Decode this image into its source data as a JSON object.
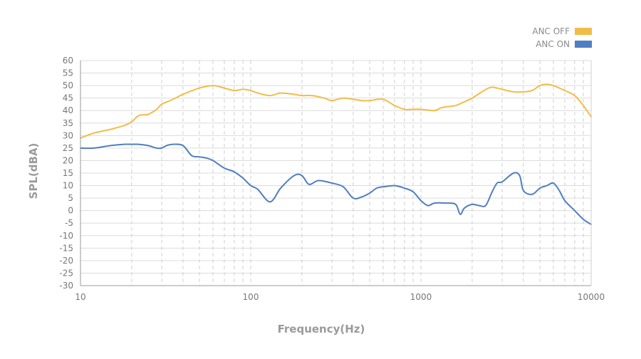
{
  "chart_data": {
    "type": "line",
    "xscale": "log",
    "xlim": [
      10,
      10000
    ],
    "ylim": [
      -30,
      60
    ],
    "xlabel": "Frequency(Hz)",
    "ylabel": "SPL(dBA)",
    "xticks": [
      10,
      100,
      1000,
      10000
    ],
    "xtick_labels": [
      "10",
      "100",
      "1000",
      "10000"
    ],
    "yticks": [
      60,
      55,
      50,
      45,
      40,
      35,
      30,
      25,
      20,
      15,
      10,
      5,
      0,
      -5,
      -10,
      -15,
      -20,
      -25,
      -30
    ],
    "ytick_labels": [
      "60",
      "55",
      "50",
      "45",
      "40",
      "35",
      "30",
      "25",
      "20",
      "15",
      "10",
      "5",
      "0",
      "-5",
      "-10",
      "-15",
      "-20",
      "-25",
      "-30"
    ],
    "grid": {
      "x": "dashed",
      "y": "solid"
    },
    "legend_position": "top-right",
    "series": [
      {
        "name": "ANC OFF",
        "color": "#f2bc48",
        "x": [
          10,
          12,
          15,
          18,
          20,
          22,
          25,
          28,
          30,
          35,
          40,
          50,
          60,
          70,
          80,
          90,
          100,
          110,
          130,
          150,
          180,
          200,
          230,
          270,
          300,
          350,
          400,
          450,
          500,
          600,
          700,
          800,
          900,
          1000,
          1200,
          1300,
          1400,
          1600,
          1800,
          2000,
          2500,
          2800,
          3000,
          3500,
          4000,
          4500,
          5000,
          5500,
          6000,
          6500,
          7000,
          8000,
          9000,
          10000
        ],
        "values": [
          29,
          31,
          32.5,
          34,
          35.5,
          38,
          38.5,
          40.5,
          42.5,
          44.5,
          46.5,
          49,
          50,
          49,
          48,
          48.5,
          48,
          47,
          46,
          47,
          46.5,
          46,
          46,
          45,
          44,
          45,
          44.5,
          44,
          44,
          44.5,
          42,
          40.5,
          40.5,
          40.5,
          40,
          41,
          41.5,
          42,
          43.5,
          45,
          49,
          49,
          48.5,
          47.5,
          47.5,
          48,
          50,
          50.5,
          50,
          49,
          48,
          46,
          42,
          37.5
        ]
      },
      {
        "name": "ANC ON",
        "color": "#4f7fc0",
        "x": [
          10,
          12,
          15,
          18,
          20,
          22,
          25,
          28,
          30,
          32,
          35,
          40,
          45,
          50,
          55,
          60,
          70,
          80,
          90,
          100,
          110,
          130,
          150,
          180,
          200,
          220,
          250,
          300,
          350,
          400,
          450,
          500,
          550,
          600,
          700,
          800,
          900,
          1000,
          1100,
          1200,
          1400,
          1600,
          1700,
          1800,
          2000,
          2200,
          2400,
          2600,
          2800,
          3000,
          3500,
          3800,
          4000,
          4500,
          5000,
          5500,
          6000,
          6500,
          7000,
          8000,
          9000,
          10000
        ],
        "values": [
          25,
          25,
          26,
          26.5,
          26.5,
          26.5,
          26,
          25,
          25,
          26,
          26.5,
          26,
          22,
          21.5,
          21,
          20,
          17,
          15.5,
          13,
          10,
          8.5,
          3.5,
          9,
          14,
          14,
          10.5,
          12,
          11,
          9.5,
          5,
          5.5,
          7,
          9,
          9.5,
          10,
          9,
          7.5,
          4,
          2,
          3,
          3,
          2.5,
          -1.5,
          1,
          2.5,
          2,
          2,
          7,
          11,
          11.5,
          15,
          14,
          8,
          6.5,
          9,
          10,
          11,
          8,
          4,
          0,
          -3.5,
          -5.5
        ]
      }
    ]
  }
}
